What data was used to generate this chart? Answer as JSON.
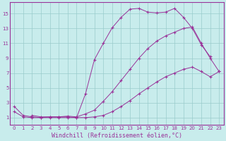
{
  "background_color": "#c8ecec",
  "plot_bg_color": "#c8ecec",
  "line_color": "#993399",
  "grid_color": "#99cccc",
  "xlabel": "Windchill (Refroidissement éolien,°C)",
  "xlabel_fontsize": 6,
  "tick_fontsize": 5,
  "xlim": [
    -0.5,
    23.5
  ],
  "ylim": [
    0,
    16.5
  ],
  "yticks": [
    1,
    3,
    5,
    7,
    9,
    11,
    13,
    15
  ],
  "xticks": [
    0,
    1,
    2,
    3,
    4,
    5,
    6,
    7,
    8,
    9,
    10,
    11,
    12,
    13,
    14,
    15,
    16,
    17,
    18,
    19,
    20,
    21,
    22,
    23
  ],
  "s1_x": [
    0,
    1,
    2,
    3,
    4,
    5,
    6,
    7,
    8,
    9,
    10,
    11,
    12,
    13,
    14,
    15,
    16,
    17,
    18,
    19,
    20,
    21,
    22
  ],
  "s1_y": [
    2.5,
    1.3,
    1.1,
    1.0,
    1.1,
    1.1,
    1.1,
    1.0,
    4.2,
    8.8,
    11.0,
    13.1,
    14.5,
    15.6,
    15.7,
    15.2,
    15.1,
    15.2,
    15.7,
    14.5,
    13.0,
    10.8,
    9.2
  ],
  "s2_x": [
    2,
    3,
    4,
    5,
    6,
    7,
    8,
    9,
    10,
    11,
    12,
    13,
    14,
    15,
    16,
    17,
    18,
    19,
    20,
    21,
    22,
    23
  ],
  "s2_y": [
    1.3,
    1.1,
    1.1,
    1.1,
    1.2,
    1.1,
    1.5,
    2.0,
    3.2,
    4.5,
    6.0,
    7.5,
    9.0,
    10.3,
    11.3,
    12.0,
    12.5,
    13.0,
    13.2,
    11.0,
    9.0,
    7.2
  ],
  "s3_x": [
    0,
    1,
    2,
    3,
    4,
    5,
    6,
    7,
    8,
    9,
    10,
    11,
    12,
    13,
    14,
    15,
    16,
    17,
    18,
    19,
    20,
    21,
    22,
    23
  ],
  "s3_y": [
    1.8,
    1.1,
    1.0,
    1.0,
    1.0,
    1.0,
    1.0,
    1.0,
    1.0,
    1.1,
    1.3,
    1.8,
    2.5,
    3.3,
    4.2,
    5.0,
    5.8,
    6.5,
    7.0,
    7.5,
    7.8,
    7.2,
    6.5,
    7.2
  ]
}
